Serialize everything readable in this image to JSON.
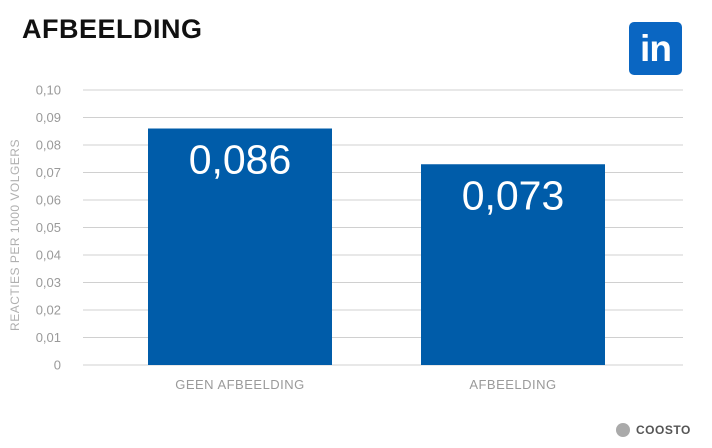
{
  "header": {
    "title": "AFBEELDING"
  },
  "logo": {
    "text": "in",
    "icon": "linkedin-icon",
    "color": "#0a66c2"
  },
  "brand": {
    "text": "COOSTO",
    "icon": "coosto-dot-icon"
  },
  "colors": {
    "bar": "#005ca9",
    "grid": "#d0d0d0",
    "tick_text": "#9a9a9a"
  },
  "chart_data": {
    "type": "bar",
    "title": "AFBEELDING",
    "xlabel": "",
    "ylabel": "REACTIES PER 1000 VOLGERS",
    "categories": [
      "GEEN AFBEELDING",
      "AFBEELDING"
    ],
    "values": [
      0.086,
      0.073
    ],
    "value_labels": [
      "0,086",
      "0,073"
    ],
    "ylim": [
      0,
      0.1
    ],
    "yticks": [
      0,
      0.01,
      0.02,
      0.03,
      0.04,
      0.05,
      0.06,
      0.07,
      0.08,
      0.09,
      0.1
    ],
    "ytick_labels": [
      "0",
      "0,01",
      "0,02",
      "0,03",
      "0,04",
      "0,05",
      "0,06",
      "0,07",
      "0,08",
      "0,09",
      "0,10"
    ],
    "grid": true,
    "legend": "none"
  }
}
